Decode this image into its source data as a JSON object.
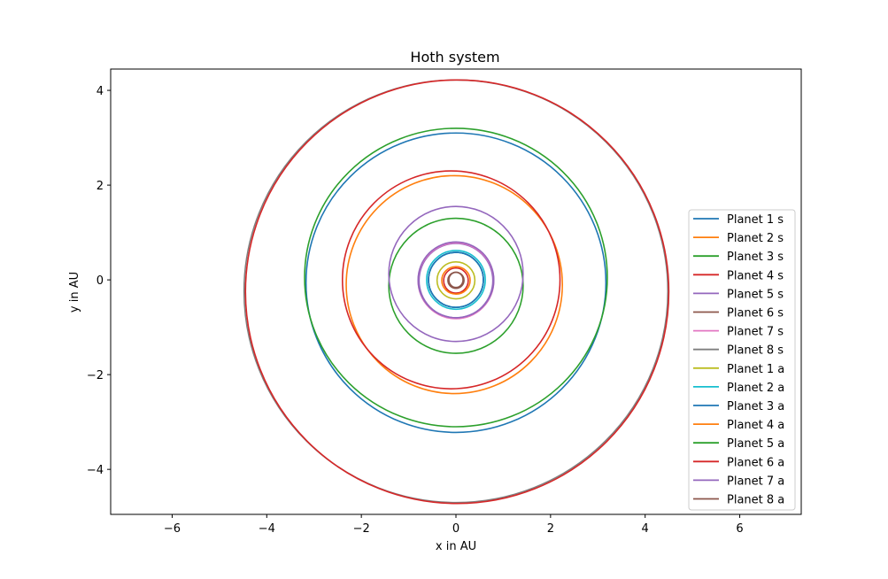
{
  "chart_data": {
    "type": "line",
    "title": "Hoth system",
    "xlabel": "x in AU",
    "ylabel": "y in AU",
    "xlim": [
      -7.3,
      7.3
    ],
    "ylim": [
      -4.95,
      4.45
    ],
    "xticks": [
      -6,
      -4,
      -2,
      0,
      2,
      4,
      6
    ],
    "yticks": [
      -4,
      -2,
      0,
      2,
      4
    ],
    "xtick_labels": [
      "−6",
      "−4",
      "−2",
      "0",
      "2",
      "4",
      "6"
    ],
    "ytick_labels": [
      "−4",
      "−2",
      "0",
      "2",
      "4"
    ],
    "grid": false,
    "legend_position": "lower right",
    "series": [
      {
        "name": "Planet 1 s",
        "color": "#1f77b4",
        "orbit": {
          "right": 3.17,
          "left": -3.17,
          "top": 3.1,
          "bottom": -3.22
        }
      },
      {
        "name": "Planet 2 s",
        "color": "#ff7f0e",
        "orbit": {
          "right": 2.25,
          "left": -2.32,
          "top": 2.2,
          "bottom": -2.4
        }
      },
      {
        "name": "Planet 3 s",
        "color": "#2ca02c",
        "orbit": {
          "right": 1.42,
          "left": -1.42,
          "top": 1.3,
          "bottom": -1.55
        }
      },
      {
        "name": "Planet 4 s",
        "color": "#d62728",
        "orbit": {
          "right": 0.26,
          "left": -0.26,
          "top": 0.25,
          "bottom": -0.28
        }
      },
      {
        "name": "Planet 5 s",
        "color": "#9467bd",
        "orbit": {
          "right": 0.78,
          "left": -0.78,
          "top": 0.77,
          "bottom": -0.8
        }
      },
      {
        "name": "Planet 6 s",
        "color": "#8c564b",
        "orbit": {
          "right": 0.17,
          "left": -0.17,
          "top": 0.16,
          "bottom": -0.18
        }
      },
      {
        "name": "Planet 7 s",
        "color": "#e377c2",
        "orbit": {
          "right": 0.8,
          "left": -0.8,
          "top": 0.78,
          "bottom": -0.82
        }
      },
      {
        "name": "Planet 8 s",
        "color": "#7f7f7f",
        "orbit": {
          "right": 4.48,
          "left": -4.48,
          "top": 4.22,
          "bottom": -4.7
        }
      },
      {
        "name": "Planet 1 a",
        "color": "#bcbd22",
        "orbit": {
          "right": 0.4,
          "left": -0.4,
          "top": 0.38,
          "bottom": -0.4
        }
      },
      {
        "name": "Planet 2 a",
        "color": "#17becf",
        "orbit": {
          "right": 0.58,
          "left": -0.58,
          "top": 0.58,
          "bottom": -0.58
        }
      },
      {
        "name": "Planet 3 a",
        "color": "#1f77b4",
        "orbit": {
          "right": 0.58,
          "left": -0.58,
          "top": 0.58,
          "bottom": -0.58
        }
      },
      {
        "name": "Planet 4 a",
        "color": "#ff7f0e",
        "orbit": {
          "right": 0.3,
          "left": -0.3,
          "top": 0.28,
          "bottom": -0.3
        }
      },
      {
        "name": "Planet 5 a",
        "color": "#2ca02c",
        "orbit": {
          "right": 3.2,
          "left": -3.2,
          "top": 3.2,
          "bottom": -3.1
        }
      },
      {
        "name": "Planet 6 a",
        "color": "#d62728",
        "orbit": {
          "right": 2.2,
          "left": -2.4,
          "top": 2.3,
          "bottom": -2.3
        }
      },
      {
        "name": "Planet 7 a",
        "color": "#9467bd",
        "orbit": {
          "right": 1.42,
          "left": -1.42,
          "top": 1.55,
          "bottom": -1.3
        }
      },
      {
        "name": "Planet 8 a",
        "color": "#8c564b",
        "orbit": {
          "right": 0.15,
          "left": -0.15,
          "top": 0.16,
          "bottom": -0.16
        }
      },
      {
        "name": "",
        "color": "#d62728",
        "orbit": {
          "right": 4.5,
          "left": -4.45,
          "top": 4.22,
          "bottom": -4.72
        }
      },
      {
        "name": "",
        "color": "#1f77b4",
        "orbit": {
          "right": 0.58,
          "left": -0.58,
          "top": 0.58,
          "bottom": -0.58
        }
      },
      {
        "name": "",
        "color": "#17becf",
        "orbit": {
          "right": 0.62,
          "left": -0.62,
          "top": 0.62,
          "bottom": -0.62
        }
      },
      {
        "name": "",
        "color": "#9467bd",
        "orbit": {
          "right": 0.8,
          "left": -0.8,
          "top": 0.8,
          "bottom": -0.8
        }
      }
    ]
  }
}
